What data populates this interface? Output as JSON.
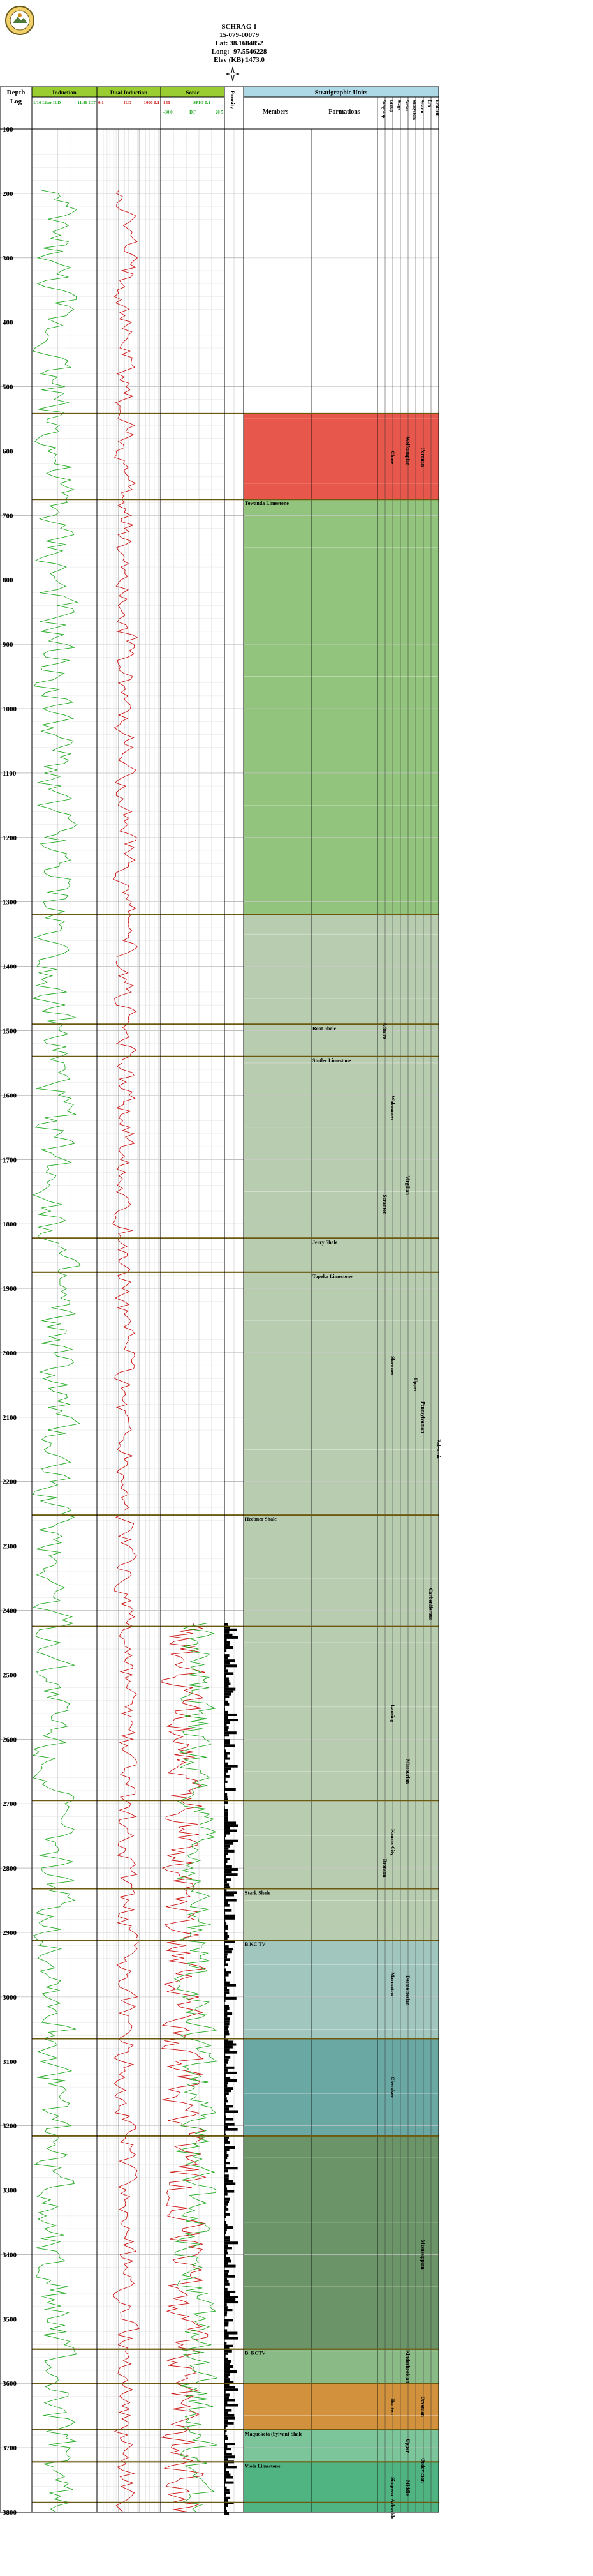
{
  "well": {
    "name": "SCHRAG 1",
    "api": "15-079-00079",
    "lat": "Lat: 38.1684852",
    "long": "Long: -97.5546228",
    "elev": "Elev (KB) 1473.0"
  },
  "header": {
    "depth_title": "Depth",
    "depth_sub": "Log",
    "columns": [
      {
        "title": "Induction",
        "color": "#9acd32"
      },
      {
        "title": "Dual Induction",
        "color": "#9acd32"
      },
      {
        "title": "Sonic",
        "color": "#9acd32"
      },
      {
        "title": "Porosity",
        "color": "#ffffff"
      },
      {
        "title": "Stratigraphic Units",
        "color": "#add8e6"
      }
    ],
    "induction_scale": {
      "left": "1/16  Liter  ILD",
      "right": "11.46  ILT"
    },
    "dual_scale": {
      "left": "0.1",
      "mid": "ILD",
      "right": "1000  0.1"
    },
    "sonic_scale": {
      "left": "SPHI  0.1",
      "right": "140",
      "sub_left": "-30 0",
      "sub_mid": "DT",
      "sub_right": "20 5"
    },
    "members_label": "Members",
    "formations_label": "Formations",
    "unit_labels": [
      "Subgroup",
      "Group",
      "Stage",
      "Series",
      "Subsystem",
      "System",
      "Era",
      "Erathem"
    ]
  },
  "chart_data": {
    "type": "well-log",
    "depth_axis": {
      "min": 100,
      "max": 3800,
      "ticks": [
        100,
        200,
        300,
        400,
        500,
        600,
        700,
        800,
        900,
        1000,
        1100,
        1200,
        1300,
        1400,
        1500,
        1600,
        1700,
        1800,
        1900,
        2000,
        2100,
        2200,
        2300,
        2400,
        2500,
        2600,
        2700,
        2800,
        2900,
        3000,
        3100,
        3200,
        3300,
        3400,
        3500,
        3600,
        3700,
        3800
      ]
    },
    "tops": [
      {
        "depth": 542,
        "member": ""
      },
      {
        "depth": 675,
        "member": "Towanda Limestone"
      },
      {
        "depth": 1320,
        "member": ""
      },
      {
        "depth": 1490,
        "member": "Root Shale"
      },
      {
        "depth": 1540,
        "member": "Stotler Limestone"
      },
      {
        "depth": 1822,
        "member": "Jerry Shale"
      },
      {
        "depth": 1875,
        "member": "Topeka Limestone"
      },
      {
        "depth": 2252,
        "member": "Heebner Shale"
      },
      {
        "depth": 2425,
        "member": ""
      },
      {
        "depth": 2695,
        "member": ""
      },
      {
        "depth": 2832,
        "member": "Stark Shale"
      },
      {
        "depth": 2912,
        "member": "B.KC TV"
      },
      {
        "depth": 3065,
        "member": ""
      },
      {
        "depth": 3216,
        "member": ""
      },
      {
        "depth": 3547,
        "member": "B. KCTV"
      },
      {
        "depth": 3600,
        "member": ""
      },
      {
        "depth": 3672,
        "member": "Maquoketa (Sylvan) Shale"
      },
      {
        "depth": 3722,
        "member": "Viola Limestone"
      },
      {
        "depth": 3785,
        "member": ""
      }
    ],
    "zones": [
      {
        "from": 542,
        "to": 675,
        "color": "#e8574b"
      },
      {
        "from": 675,
        "to": 1320,
        "color": "#93c47d"
      },
      {
        "from": 1320,
        "to": 2912,
        "color": "#b8ccb0"
      },
      {
        "from": 2912,
        "to": 3065,
        "color": "#a0c6bd"
      },
      {
        "from": 3065,
        "to": 3216,
        "color": "#6aa8a4"
      },
      {
        "from": 3216,
        "to": 3547,
        "color": "#6b9468"
      },
      {
        "from": 3547,
        "to": 3600,
        "color": "#8aba86"
      },
      {
        "from": 3600,
        "to": 3672,
        "color": "#d2913d"
      },
      {
        "from": 3672,
        "to": 3722,
        "color": "#7cc49a"
      },
      {
        "from": 3722,
        "to": 3800,
        "color": "#4fb382"
      }
    ],
    "formation_labels": [
      {
        "text": "Chase",
        "col": "Group",
        "depth": 610
      },
      {
        "text": "Wolfcampian",
        "col": "Series",
        "depth": 600
      },
      {
        "text": "Permian",
        "col": "System",
        "depth": 610
      },
      {
        "text": "Admire",
        "col": "Subgroup",
        "depth": 1500
      },
      {
        "text": "Wabaunsee",
        "col": "Group",
        "depth": 1620
      },
      {
        "text": "Virgilian",
        "col": "Series",
        "depth": 1740
      },
      {
        "text": "Scranton",
        "col": "Subgroup",
        "depth": 1770
      },
      {
        "text": "Shawnee",
        "col": "Group",
        "depth": 2020
      },
      {
        "text": "Upper",
        "col": "Subsystem",
        "depth": 2050
      },
      {
        "text": "Pennsylvanian",
        "col": "System",
        "depth": 2100
      },
      {
        "text": "Paleozoic",
        "col": "Erathem",
        "depth": 2150
      },
      {
        "text": "Carboniferous",
        "col": "Era",
        "depth": 2390
      },
      {
        "text": "Lansing",
        "col": "Group",
        "depth": 2560
      },
      {
        "text": "Missourian",
        "col": "Series",
        "depth": 2650
      },
      {
        "text": "Kansas City",
        "col": "Group",
        "depth": 2760
      },
      {
        "text": "Bronson",
        "col": "Subgroup",
        "depth": 2800
      },
      {
        "text": "Marmaton",
        "col": "Group",
        "depth": 2980
      },
      {
        "text": "Desmoinesian",
        "col": "Series",
        "depth": 2990
      },
      {
        "text": "Cherokee",
        "col": "Group",
        "depth": 3140
      },
      {
        "text": "Mississippian",
        "col": "System",
        "depth": 3400
      },
      {
        "text": "Kinderhookian",
        "col": "Series",
        "depth": 3574
      },
      {
        "text": "Hunton",
        "col": "Group",
        "depth": 3636
      },
      {
        "text": "Devonian",
        "col": "System",
        "depth": 3636
      },
      {
        "text": "Upper",
        "col": "Series",
        "depth": 3697
      },
      {
        "text": "Ordovician",
        "col": "System",
        "depth": 3735
      },
      {
        "text": "Simpson",
        "col": "Group",
        "depth": 3760
      },
      {
        "text": "Middle",
        "col": "Series",
        "depth": 3762
      },
      {
        "text": "Arbuckle",
        "col": "Group",
        "depth": 3795
      }
    ],
    "curves": {
      "induction": {
        "color": "#22aa22",
        "start": 195,
        "end": 3800
      },
      "resistivity": {
        "color": "#cc1111",
        "start": 195,
        "end": 3800
      },
      "sonic_red": {
        "color": "#cc1111",
        "start": 2420,
        "end": 3800
      },
      "sonic_green": {
        "color": "#22aa22",
        "start": 2420,
        "end": 3800
      },
      "porosity": {
        "color": "#000000",
        "start": 2420,
        "end": 3800
      }
    }
  }
}
